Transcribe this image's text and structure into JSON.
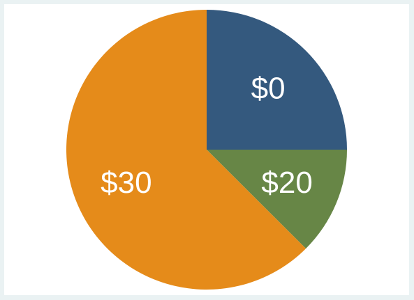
{
  "chart_data": {
    "type": "pie",
    "slices": [
      {
        "label": "$0",
        "value": 25,
        "color": "#34597e"
      },
      {
        "label": "$20",
        "value": 12.5,
        "color": "#678646"
      },
      {
        "label": "$30",
        "value": 62.5,
        "color": "#e58b1a"
      }
    ],
    "start_angle_deg": 0,
    "direction": "clockwise",
    "label_color": "#ffffff",
    "background": "#ffffff",
    "frame_color": "#eaf2f3"
  }
}
